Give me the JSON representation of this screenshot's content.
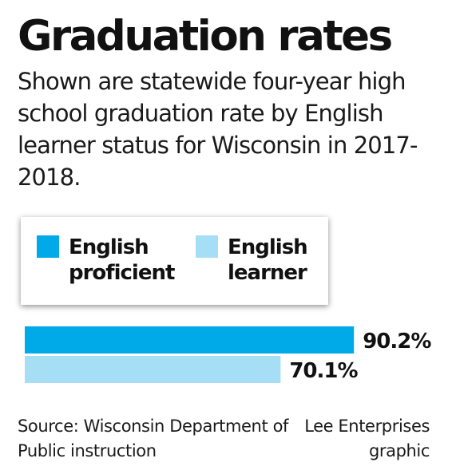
{
  "header": {
    "title": "Graduation rates",
    "subtitle": "Shown are statewide four-year high school graduation rate by English learner status for Wisconsin in 2017-2018."
  },
  "legend": {
    "items": [
      {
        "label": "English proficient",
        "color": "#00a9e8"
      },
      {
        "label": "English learner",
        "color": "#a6def6"
      }
    ]
  },
  "chart_data": {
    "type": "bar",
    "orientation": "horizontal",
    "title": "Graduation rates",
    "categories": [
      "English proficient",
      "English learner"
    ],
    "values": [
      90.2,
      70.1
    ],
    "value_labels": [
      "90.2%",
      "70.1%"
    ],
    "colors": [
      "#00a9e8",
      "#a6def6"
    ],
    "xlim": [
      0,
      100
    ],
    "unit": "%",
    "grid": false,
    "legend_position": "top"
  },
  "footer": {
    "source": "Source: Wisconsin Department of Public instruction",
    "credit": "Lee Enterprises graphic"
  }
}
